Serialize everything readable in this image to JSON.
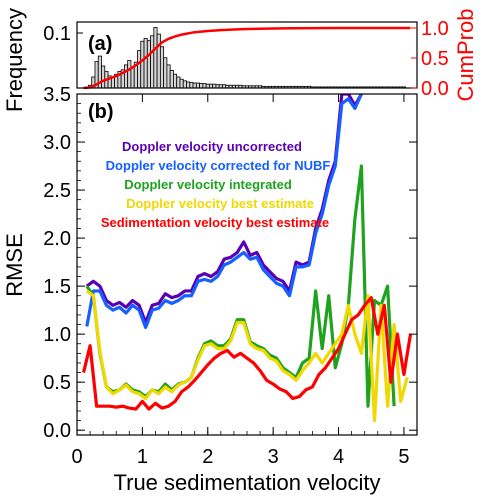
{
  "chart_data": [
    {
      "panel": "(a)",
      "type": "bar",
      "ylabel": "Frequency",
      "ylabel_right": "CumProb",
      "yticks": [
        "0.1"
      ],
      "yticks_right": [
        "0.0",
        "0.5",
        "1.0"
      ],
      "ylim": [
        0,
        0.12
      ],
      "ylim_right": [
        0,
        1.1
      ],
      "bins": {
        "x": [
          0.2,
          0.25,
          0.3,
          0.35,
          0.4,
          0.45,
          0.5,
          0.55,
          0.6,
          0.65,
          0.7,
          0.75,
          0.8,
          0.85,
          0.9,
          0.95,
          1.0,
          1.05,
          1.1,
          1.15,
          1.2,
          1.25,
          1.3,
          1.35,
          1.4,
          1.45,
          1.5,
          1.55,
          1.6,
          1.65,
          1.7,
          1.75,
          1.8,
          1.85,
          1.9,
          1.95,
          2.0,
          2.05,
          2.1,
          2.15,
          2.2,
          2.25,
          2.3,
          2.35,
          2.4,
          2.45,
          2.5,
          2.55,
          2.6,
          2.65,
          2.7,
          2.75,
          2.8,
          2.85,
          2.9,
          2.95,
          3.0,
          3.05,
          3.1,
          3.15,
          3.2,
          3.25,
          3.3,
          3.35,
          3.4,
          3.45,
          3.5,
          3.55,
          3.6,
          3.65,
          3.7,
          3.75,
          3.8,
          3.85,
          3.9,
          3.95,
          4.0,
          4.05,
          4.1,
          4.15,
          4.2,
          4.25,
          4.3,
          4.35,
          4.4,
          4.45,
          4.5,
          4.55,
          4.6,
          4.65,
          4.7,
          4.75,
          4.8,
          4.85,
          4.9,
          4.95,
          5.0
        ],
        "values": [
          0.005,
          0.02,
          0.048,
          0.058,
          0.04,
          0.03,
          0.022,
          0.02,
          0.025,
          0.03,
          0.033,
          0.042,
          0.05,
          0.038,
          0.047,
          0.068,
          0.085,
          0.09,
          0.086,
          0.095,
          0.11,
          0.098,
          0.075,
          0.055,
          0.042,
          0.032,
          0.025,
          0.02,
          0.016,
          0.013,
          0.011,
          0.01,
          0.009,
          0.009,
          0.008,
          0.008,
          0.007,
          0.007,
          0.007,
          0.006,
          0.006,
          0.006,
          0.005,
          0.005,
          0.005,
          0.005,
          0.005,
          0.004,
          0.004,
          0.004,
          0.004,
          0.004,
          0.004,
          0.003,
          0.003,
          0.003,
          0.003,
          0.003,
          0.003,
          0.003,
          0.003,
          0.003,
          0.003,
          0.003,
          0.003,
          0.003,
          0.003,
          0.003,
          0.002,
          0.002,
          0.002,
          0.002,
          0.002,
          0.002,
          0.002,
          0.002,
          0.002,
          0.002,
          0.002,
          0.002,
          0.002,
          0.002,
          0.002,
          0.002,
          0.002,
          0.002,
          0.002,
          0.002,
          0.002,
          0.002,
          0.002,
          0.002,
          0.002,
          0.002,
          0.002,
          0.002,
          0.002
        ]
      },
      "cumprob": {
        "x": [
          0.1,
          0.2,
          0.3,
          0.4,
          0.5,
          0.6,
          0.7,
          0.8,
          0.9,
          1.0,
          1.1,
          1.2,
          1.3,
          1.4,
          1.5,
          1.6,
          1.7,
          1.8,
          1.9,
          2.0,
          2.2,
          2.4,
          2.6,
          2.8,
          3.0,
          3.3,
          3.6,
          4.0,
          4.5,
          5.0,
          5.1
        ],
        "values": [
          0.0,
          0.01,
          0.06,
          0.12,
          0.16,
          0.2,
          0.25,
          0.31,
          0.38,
          0.46,
          0.55,
          0.66,
          0.76,
          0.82,
          0.86,
          0.89,
          0.91,
          0.93,
          0.94,
          0.95,
          0.965,
          0.975,
          0.983,
          0.988,
          0.992,
          0.995,
          0.997,
          0.999,
          1.0,
          1.0,
          1.0
        ]
      },
      "colors": {
        "bars_fill": "#d4d4d4",
        "bars_stroke": "#000000",
        "cumprob": "#ff0000"
      }
    },
    {
      "panel": "(b)",
      "type": "line",
      "xlabel": "True sedimentation velocity",
      "ylabel": "RMSE",
      "xlim": [
        0,
        5.2
      ],
      "ylim": [
        -0.05,
        3.5
      ],
      "xticks": [
        0,
        1,
        2,
        3,
        4,
        5
      ],
      "yticks": [
        0.0,
        0.5,
        1.0,
        1.5,
        2.0,
        2.5,
        3.0,
        3.5
      ],
      "xtick_labels": [
        "0",
        "1",
        "2",
        "3",
        "4",
        "5"
      ],
      "ytick_labels": [
        "0.0",
        "0.5",
        "1.0",
        "1.5",
        "2.0",
        "2.5",
        "3.0",
        "3.5"
      ],
      "legend_position": "upper-left",
      "series": [
        {
          "name": "Doppler velocity uncorrected",
          "color": "#5a00b4",
          "x": [
            0.15,
            0.25,
            0.35,
            0.45,
            0.55,
            0.65,
            0.75,
            0.85,
            0.95,
            1.05,
            1.15,
            1.25,
            1.35,
            1.45,
            1.55,
            1.65,
            1.75,
            1.85,
            1.95,
            2.05,
            2.15,
            2.25,
            2.35,
            2.45,
            2.55,
            2.65,
            2.75,
            2.85,
            2.95,
            3.05,
            3.15,
            3.25,
            3.35,
            3.45,
            3.55,
            3.65,
            3.75,
            3.85,
            3.95,
            4.05,
            4.15,
            4.25,
            4.35
          ],
          "values": [
            1.5,
            1.55,
            1.5,
            1.35,
            1.3,
            1.33,
            1.28,
            1.35,
            1.3,
            1.12,
            1.3,
            1.32,
            1.42,
            1.38,
            1.4,
            1.45,
            1.45,
            1.6,
            1.63,
            1.6,
            1.65,
            1.78,
            1.8,
            1.85,
            1.96,
            1.82,
            1.85,
            1.72,
            1.65,
            1.58,
            1.55,
            1.45,
            1.75,
            1.72,
            1.75,
            2.1,
            2.3,
            2.6,
            2.8,
            3.5,
            3.5,
            3.38,
            3.5
          ]
        },
        {
          "name": "Doppler velocity corrected for NUBF",
          "color": "#1560ff",
          "x": [
            0.15,
            0.25,
            0.35,
            0.45,
            0.55,
            0.65,
            0.75,
            0.85,
            0.95,
            1.05,
            1.15,
            1.25,
            1.35,
            1.45,
            1.55,
            1.65,
            1.75,
            1.85,
            1.95,
            2.05,
            2.15,
            2.25,
            2.35,
            2.45,
            2.55,
            2.65,
            2.75,
            2.85,
            2.95,
            3.05,
            3.15,
            3.25,
            3.35,
            3.45,
            3.55,
            3.65,
            3.75,
            3.85,
            3.95,
            4.05,
            4.15,
            4.25,
            4.35
          ],
          "values": [
            1.08,
            1.45,
            1.45,
            1.3,
            1.25,
            1.28,
            1.22,
            1.3,
            1.25,
            1.07,
            1.25,
            1.27,
            1.35,
            1.32,
            1.35,
            1.4,
            1.4,
            1.55,
            1.57,
            1.55,
            1.6,
            1.72,
            1.75,
            1.8,
            1.85,
            1.78,
            1.8,
            1.67,
            1.6,
            1.53,
            1.5,
            1.4,
            1.7,
            1.7,
            1.72,
            2.05,
            2.25,
            2.55,
            2.75,
            3.4,
            3.45,
            3.35,
            3.5
          ]
        },
        {
          "name": "Doppler velocity integrated",
          "color": "#1fa31f",
          "x": [
            0.15,
            0.25,
            0.35,
            0.45,
            0.55,
            0.65,
            0.75,
            0.85,
            0.95,
            1.05,
            1.15,
            1.25,
            1.35,
            1.45,
            1.55,
            1.65,
            1.75,
            1.85,
            1.95,
            2.05,
            2.15,
            2.25,
            2.35,
            2.45,
            2.55,
            2.65,
            2.75,
            2.85,
            2.95,
            3.05,
            3.15,
            3.25,
            3.35,
            3.45,
            3.55,
            3.65,
            3.75,
            3.85,
            3.95,
            4.05,
            4.15,
            4.25,
            4.35,
            4.45,
            4.55,
            4.65,
            4.75,
            4.85
          ],
          "values": [
            1.5,
            1.4,
            0.8,
            0.45,
            0.4,
            0.42,
            0.48,
            0.42,
            0.4,
            0.35,
            0.42,
            0.4,
            0.48,
            0.42,
            0.48,
            0.5,
            0.55,
            0.75,
            0.9,
            0.93,
            0.88,
            0.88,
            0.95,
            1.15,
            1.15,
            0.92,
            0.88,
            0.85,
            0.78,
            0.75,
            0.65,
            0.6,
            0.55,
            0.7,
            0.75,
            1.45,
            0.85,
            1.4,
            0.65,
            0.9,
            1.3,
            2.2,
            2.75,
            0.25,
            1.35,
            1.3,
            1.5,
            0.25
          ]
        },
        {
          "name": "Doppler velocity best estimate",
          "color": "#f0d800",
          "x": [
            0.15,
            0.25,
            0.35,
            0.45,
            0.55,
            0.65,
            0.75,
            0.85,
            0.95,
            1.05,
            1.15,
            1.25,
            1.35,
            1.45,
            1.55,
            1.65,
            1.75,
            1.85,
            1.95,
            2.05,
            2.15,
            2.25,
            2.35,
            2.45,
            2.55,
            2.65,
            2.75,
            2.85,
            2.95,
            3.05,
            3.15,
            3.25,
            3.35,
            3.45,
            3.55,
            3.65,
            3.75,
            3.85,
            3.95,
            4.05,
            4.15,
            4.25,
            4.35,
            4.45,
            4.55,
            4.65,
            4.75,
            4.85,
            4.95,
            5.05
          ],
          "values": [
            1.45,
            1.4,
            0.82,
            0.45,
            0.38,
            0.42,
            0.47,
            0.4,
            0.38,
            0.33,
            0.42,
            0.38,
            0.45,
            0.4,
            0.47,
            0.5,
            0.55,
            0.73,
            0.88,
            0.9,
            0.85,
            0.85,
            0.93,
            1.12,
            1.12,
            0.9,
            0.85,
            0.83,
            0.75,
            0.72,
            0.62,
            0.58,
            0.52,
            0.62,
            0.7,
            0.8,
            0.7,
            0.8,
            0.9,
            1.0,
            1.3,
            1.0,
            0.8,
            1.4,
            0.1,
            1.3,
            0.25,
            1.1,
            0.3,
            0.55
          ]
        },
        {
          "name": "Sedimentation velocity best estimate",
          "color": "#ff0000",
          "x": [
            0.1,
            0.2,
            0.3,
            0.4,
            0.5,
            0.6,
            0.7,
            0.8,
            0.9,
            1.0,
            1.1,
            1.2,
            1.3,
            1.4,
            1.5,
            1.6,
            1.7,
            1.8,
            1.9,
            2.0,
            2.1,
            2.2,
            2.3,
            2.4,
            2.5,
            2.6,
            2.7,
            2.8,
            2.9,
            3.0,
            3.1,
            3.2,
            3.3,
            3.4,
            3.5,
            3.6,
            3.7,
            3.8,
            3.9,
            4.0,
            4.1,
            4.2,
            4.3,
            4.4,
            4.5,
            4.6,
            4.7,
            4.8,
            4.9,
            5.0,
            5.1
          ],
          "values": [
            0.6,
            0.88,
            0.25,
            0.25,
            0.25,
            0.24,
            0.25,
            0.23,
            0.22,
            0.3,
            0.22,
            0.28,
            0.23,
            0.25,
            0.3,
            0.4,
            0.45,
            0.52,
            0.6,
            0.68,
            0.75,
            0.8,
            0.83,
            0.76,
            0.8,
            0.75,
            0.7,
            0.62,
            0.52,
            0.48,
            0.43,
            0.4,
            0.33,
            0.35,
            0.42,
            0.45,
            0.58,
            0.65,
            0.75,
            0.85,
            1.0,
            1.15,
            1.2,
            1.3,
            1.38,
            1.0,
            1.3,
            0.5,
            1.0,
            0.58,
            1.0
          ]
        }
      ]
    }
  ]
}
